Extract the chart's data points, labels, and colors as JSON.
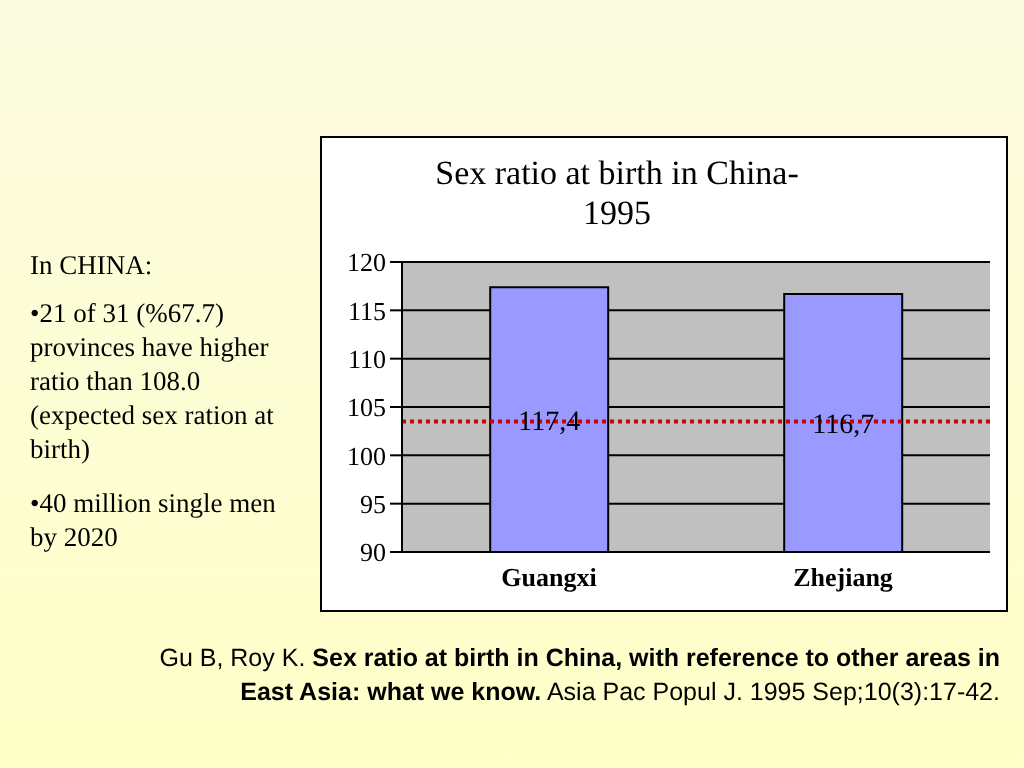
{
  "chart_data": {
    "type": "bar",
    "title": "Sex ratio at birth in China-1995",
    "categories": [
      "Guangxi",
      "Zhejiang"
    ],
    "values": [
      117.4,
      116.7
    ],
    "value_labels": [
      "117,4",
      "116,7"
    ],
    "color": "#9999ff",
    "ylim": [
      90,
      120
    ],
    "yticks": [
      90,
      95,
      100,
      105,
      110,
      115,
      120
    ],
    "grid": "y",
    "ref_lines": [
      {
        "axis": "y",
        "value": 103.5,
        "color": "#cc0000",
        "line_style": "dotted"
      }
    ],
    "annotations": [
      "In CHINA:",
      "•21 of 31 (%67.7) provinces have higher ratio than 108.0 (expected sex ration at birth)",
      "•40 million single men by 2020",
      "Gu B, Roy K.",
      "Sex ratio at birth in China, with reference to other areas in East Asia: what we know.",
      "Asia Pac Popul J. 1995 Sep;10(3):17-42."
    ]
  }
}
